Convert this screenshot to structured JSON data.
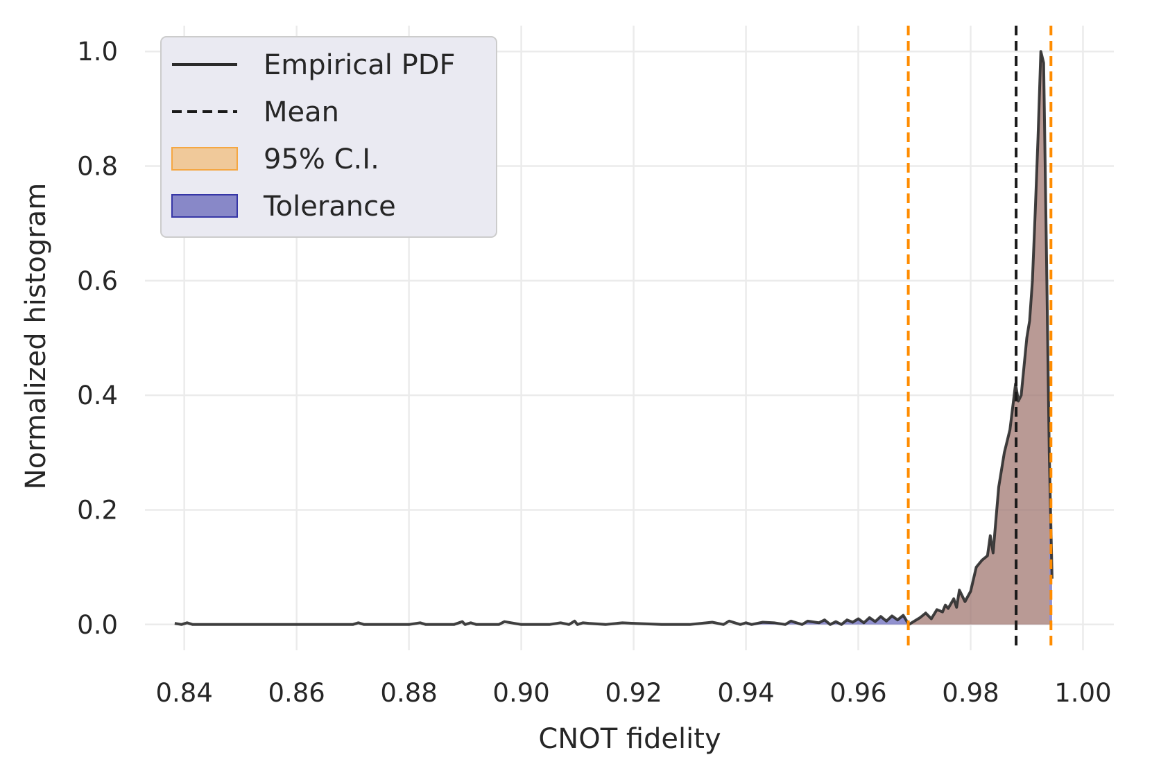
{
  "chart_data": {
    "type": "line",
    "title": "",
    "xlabel": "CNOT fidelity",
    "ylabel": "Normalized histogram",
    "xlim": [
      0.833,
      1.0055
    ],
    "ylim": [
      -0.045,
      1.045
    ],
    "xticks": [
      0.84,
      0.86,
      0.88,
      0.9,
      0.92,
      0.94,
      0.96,
      0.98,
      1.0
    ],
    "xtick_labels": [
      "0.84",
      "0.86",
      "0.88",
      "0.90",
      "0.92",
      "0.94",
      "0.96",
      "0.98",
      "1.00"
    ],
    "yticks": [
      0.0,
      0.2,
      0.4,
      0.6,
      0.8,
      1.0
    ],
    "ytick_labels": [
      "0.0",
      "0.2",
      "0.4",
      "0.6",
      "0.8",
      "1.0"
    ],
    "grid": true,
    "legend_placement": "top-left",
    "series": [
      {
        "name": "Empirical PDF",
        "kind": "line",
        "color": "#2b2b2b",
        "x": [
          0.8383,
          0.8395,
          0.8405,
          0.8415,
          0.844,
          0.85,
          0.86,
          0.87,
          0.871,
          0.872,
          0.88,
          0.882,
          0.883,
          0.885,
          0.888,
          0.8895,
          0.89,
          0.891,
          0.892,
          0.896,
          0.897,
          0.9,
          0.905,
          0.907,
          0.9085,
          0.9095,
          0.91,
          0.911,
          0.912,
          0.915,
          0.918,
          0.92,
          0.925,
          0.93,
          0.934,
          0.936,
          0.937,
          0.939,
          0.94,
          0.941,
          0.943,
          0.945,
          0.947,
          0.948,
          0.95,
          0.951,
          0.953,
          0.954,
          0.955,
          0.956,
          0.957,
          0.958,
          0.959,
          0.96,
          0.961,
          0.962,
          0.963,
          0.964,
          0.965,
          0.966,
          0.967,
          0.968,
          0.969,
          0.97,
          0.971,
          0.972,
          0.973,
          0.974,
          0.975,
          0.9755,
          0.976,
          0.977,
          0.9775,
          0.978,
          0.979,
          0.98,
          0.981,
          0.982,
          0.983,
          0.9835,
          0.984,
          0.985,
          0.9855,
          0.986,
          0.987,
          0.988,
          0.9885,
          0.989,
          0.99,
          0.9905,
          0.991,
          0.9915,
          0.992,
          0.9925,
          0.993,
          0.9935,
          0.994,
          0.9945
        ],
        "y": [
          0.002,
          0.0,
          0.003,
          0.0,
          0.0,
          0.0,
          0.0,
          0.0,
          0.003,
          0.0,
          0.0,
          0.003,
          0.0,
          0.0,
          0.0,
          0.005,
          0.0,
          0.003,
          0.0,
          0.0,
          0.005,
          0.0,
          0.0,
          0.003,
          0.0,
          0.006,
          0.0,
          0.003,
          0.002,
          0.0,
          0.003,
          0.002,
          0.0,
          0.0,
          0.004,
          0.0,
          0.006,
          0.0,
          0.003,
          0.0,
          0.004,
          0.003,
          0.0,
          0.006,
          0.0,
          0.006,
          0.003,
          0.008,
          0.0,
          0.005,
          0.0,
          0.008,
          0.004,
          0.01,
          0.003,
          0.012,
          0.005,
          0.014,
          0.006,
          0.015,
          0.008,
          0.016,
          0.0,
          0.006,
          0.012,
          0.02,
          0.01,
          0.026,
          0.022,
          0.034,
          0.028,
          0.045,
          0.03,
          0.06,
          0.04,
          0.058,
          0.1,
          0.112,
          0.12,
          0.155,
          0.125,
          0.24,
          0.27,
          0.3,
          0.34,
          0.42,
          0.39,
          0.4,
          0.5,
          0.53,
          0.6,
          0.72,
          0.85,
          1.0,
          0.98,
          0.65,
          0.3,
          0.08
        ]
      },
      {
        "name": "Mean",
        "kind": "vline",
        "color": "#1a1a1a",
        "x": 0.9881
      },
      {
        "name": "95% C.I.",
        "kind": "vband",
        "color": "#f5a742",
        "x": [
          0.9689,
          0.9943
        ]
      },
      {
        "name": "Tolerance",
        "kind": "area",
        "color": "#3636a6",
        "x": [
          0.94,
          0.9945
        ]
      }
    ]
  }
}
